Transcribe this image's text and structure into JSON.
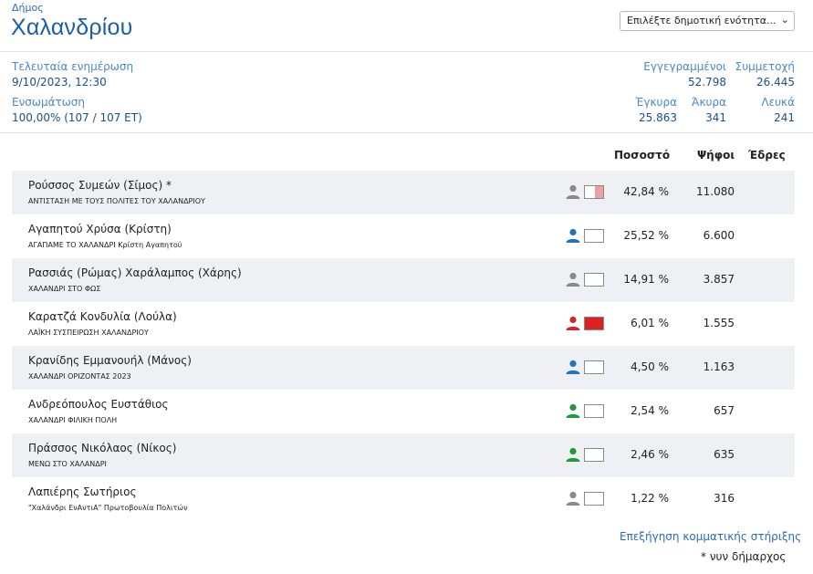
{
  "header": {
    "label": "Δήμος",
    "name": "Χαλανδρίου",
    "select_placeholder": "Επιλέξτε δημοτική ενότητα..."
  },
  "stats": {
    "last_update_label": "Τελευταία ενημέρωση",
    "last_update_value": "9/10/2023, 12:30",
    "integration_label": "Ενσωμάτωση",
    "integration_value": "100,00% (107 / 107 ΕΤ)",
    "registered_label": "Εγγεγραμμένοι",
    "registered_value": "52.798",
    "turnout_label": "Συμμετοχή",
    "turnout_value": "26.445",
    "valid_label": "Έγκυρα",
    "valid_value": "25.863",
    "invalid_label": "Άκυρα",
    "invalid_value": "341",
    "blank_label": "Λευκά",
    "blank_value": "241"
  },
  "table": {
    "col_percent": "Ποσοστό",
    "col_votes": "Ψήφοι",
    "col_seats": "Έδρες",
    "rows": [
      {
        "candidate": "Ρούσσος Συμεών (Σίμος) *",
        "party": "ΑΝΤΙΣΤΑΣΗ ΜΕ ΤΟΥΣ ΠΟΛΙΤΕΣ ΤΟΥ ΧΑΛΑΝΔΡΙΟΥ",
        "percent": "42,84 %",
        "votes": "11.080",
        "icon_color": "#8a8a8a",
        "swatch_color": "#e8a0a0",
        "swatch_fill": 0.45
      },
      {
        "candidate": "Αγαπητού Χρύσα (Κρίστη)",
        "party": "ΑΓΑΠΑΜΕ ΤΟ ΧΑΛΑΝΔΡΙ Κρίστη Αγαπητού",
        "percent": "25,52 %",
        "votes": "6.600",
        "icon_color": "#1f73bf",
        "swatch_color": "#ffffff",
        "swatch_fill": 0
      },
      {
        "candidate": "Ρασσιάς (Ρώμας) Χαράλαμπος (Χάρης)",
        "party": "ΧΑΛΑΝΔΡΙ ΣΤΟ ΦΩΣ",
        "percent": "14,91 %",
        "votes": "3.857",
        "icon_color": "#8a8a8a",
        "swatch_color": "#ffffff",
        "swatch_fill": 0
      },
      {
        "candidate": "Καρατζά Κονδυλία (Λούλα)",
        "party": "ΛΑΪΚΗ ΣΥΣΠΕΙΡΩΣΗ ΧΑΛΑΝΔΡΙΟΥ",
        "percent": "6,01 %",
        "votes": "1.555",
        "icon_color": "#d42828",
        "swatch_color": "#dd2020",
        "swatch_fill": 1
      },
      {
        "candidate": "Κρανίδης Εμμανουήλ (Μάνος)",
        "party": "ΧΑΛΑΝΔΡΙ ΟΡΙΖΟΝΤΑΣ 2023",
        "percent": "4,50 %",
        "votes": "1.163",
        "icon_color": "#1f73bf",
        "swatch_color": "#ffffff",
        "swatch_fill": 0
      },
      {
        "candidate": "Ανδρεόπουλος Ευστάθιος",
        "party": "ΧΑΛΑΝΔΡΙ ΦΙΛΙΚΗ ΠΟΛΗ",
        "percent": "2,54 %",
        "votes": "657",
        "icon_color": "#1f9a3a",
        "swatch_color": "#ffffff",
        "swatch_fill": 0
      },
      {
        "candidate": "Πράσσος Νικόλαος (Νίκος)",
        "party": "ΜΕΝΩ ΣΤΟ ΧΑΛΑΝΔΡΙ",
        "percent": "2,46 %",
        "votes": "635",
        "icon_color": "#1f9a3a",
        "swatch_color": "#ffffff",
        "swatch_fill": 0
      },
      {
        "candidate": "Λαπιέρης Σωτήριος",
        "party": "\"Χαλάνδρι ΕνΑντιΑ\" Πρωτοβουλία Πολιτών",
        "percent": "1,22 %",
        "votes": "316",
        "icon_color": "#8a8a8a",
        "swatch_color": "#ffffff",
        "swatch_fill": 0
      }
    ]
  },
  "footer": {
    "link": "Επεξήγηση κομματικής στήριξης",
    "note": "* νυν δήμαρχος"
  }
}
